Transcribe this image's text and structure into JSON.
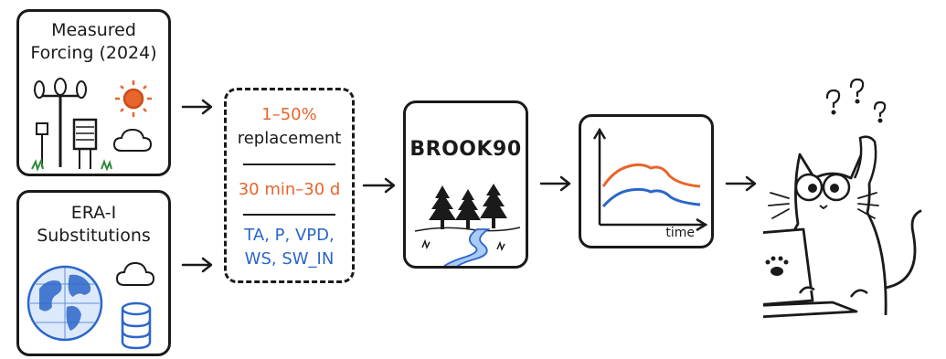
{
  "measured": {
    "title_line1": "Measured",
    "title_line2": "Forcing (2024)"
  },
  "era": {
    "title_line1": "ERA-I",
    "title_line2": "Substitutions"
  },
  "replacement": {
    "percent": "1–50%",
    "label": "replacement",
    "duration": "30 min–30 d",
    "vars_line1": "TA, P, VPD,",
    "vars_line2": "WS, SW_IN"
  },
  "model": {
    "name": "BROOK90"
  },
  "output": {
    "x_label": "time"
  },
  "colors": {
    "orange": "#e8652b",
    "blue": "#2b66c9",
    "ink": "#1a1a1a"
  },
  "icons": [
    "anemometer-icon",
    "weather-station-icon",
    "sun-icon",
    "cloud-icon",
    "globe-icon",
    "database-icon",
    "tree-icon",
    "stream-icon",
    "cat-icon",
    "laptop-icon",
    "paw-icon",
    "question-marks-icon"
  ]
}
